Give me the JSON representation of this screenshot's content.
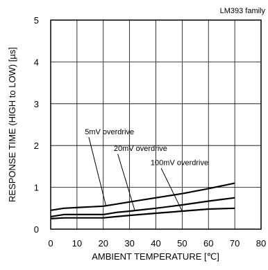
{
  "chart_data": {
    "type": "line",
    "title": "LM393 family",
    "xlabel": "AMBIENT TEMPERATURE [℃]",
    "ylabel": "RESPONSE TIME (HIGH to LOW) [µs]",
    "xlim": [
      0,
      80
    ],
    "ylim": [
      0,
      5
    ],
    "x_ticks": [
      0,
      10,
      20,
      30,
      40,
      50,
      60,
      70,
      80
    ],
    "y_ticks": [
      0,
      1,
      2,
      3,
      4,
      5
    ],
    "grid": true,
    "series": [
      {
        "name": "5mV overdrive",
        "x": [
          0,
          5,
          20,
          25,
          30,
          40,
          50,
          60,
          70
        ],
        "y": [
          0.45,
          0.5,
          0.55,
          0.6,
          0.65,
          0.75,
          0.85,
          0.97,
          1.1
        ]
      },
      {
        "name": "20mV overdrive",
        "x": [
          0,
          5,
          20,
          25,
          30,
          40,
          50,
          60,
          70
        ],
        "y": [
          0.3,
          0.35,
          0.35,
          0.4,
          0.43,
          0.5,
          0.58,
          0.67,
          0.75
        ]
      },
      {
        "name": "100mV overdrive",
        "x": [
          0,
          5,
          20,
          25,
          30,
          40,
          50,
          60,
          70
        ],
        "y": [
          0.25,
          0.27,
          0.27,
          0.3,
          0.33,
          0.38,
          0.43,
          0.48,
          0.5
        ]
      }
    ],
    "annotations": [
      {
        "text": "5mV overdrive",
        "series": 0,
        "at_x": 21,
        "label_x": 13,
        "label_y": 2.27,
        "leader_from_x": 14.5,
        "leader_from_y": 2.2
      },
      {
        "text": "20mV overdrive",
        "series": 1,
        "at_x": 32,
        "label_x": 24,
        "label_y": 1.87,
        "leader_from_x": 25.5,
        "leader_from_y": 1.8
      },
      {
        "text": "100mV overdrive",
        "series": 2,
        "at_x": 50,
        "label_x": 38,
        "label_y": 1.53,
        "leader_from_x": 42,
        "leader_from_y": 1.46
      }
    ]
  }
}
